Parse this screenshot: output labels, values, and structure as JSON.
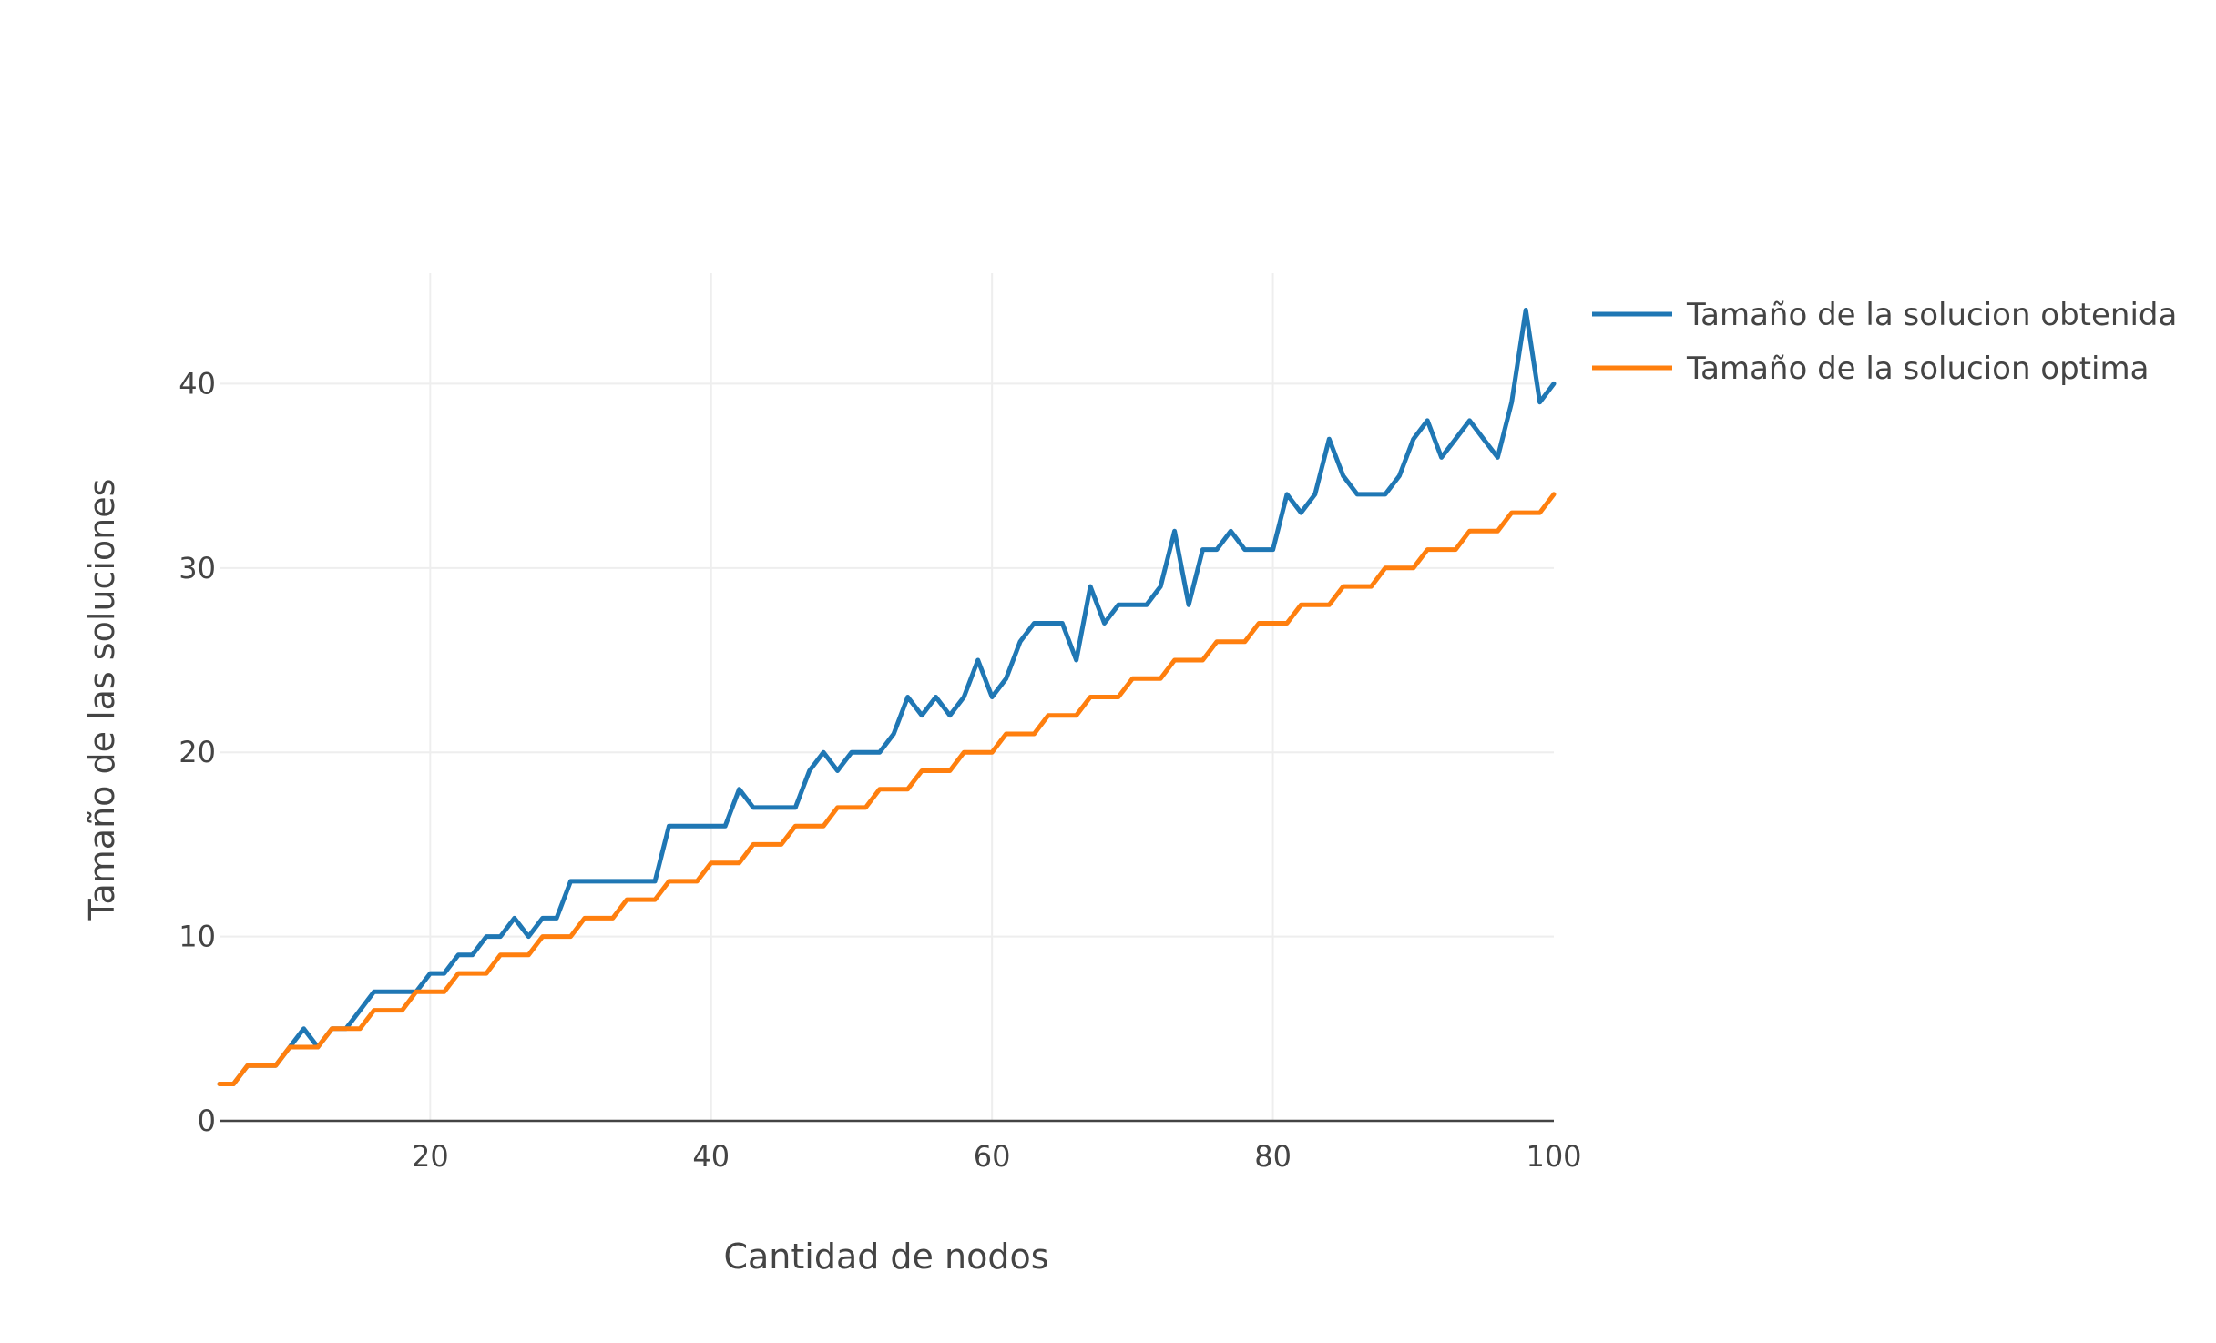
{
  "chart_data": {
    "type": "line",
    "title": "",
    "xlabel": "Cantidad de nodos",
    "ylabel": "Tamaño de las soluciones",
    "xlim": [
      5,
      100
    ],
    "ylim": [
      0,
      46
    ],
    "x_ticks": [
      20,
      40,
      60,
      80,
      100
    ],
    "y_ticks": [
      0,
      10,
      20,
      30,
      40
    ],
    "grid": true,
    "legend_position": "top-right, outside plot",
    "x": [
      5,
      6,
      7,
      8,
      9,
      10,
      11,
      12,
      13,
      14,
      15,
      16,
      17,
      18,
      19,
      20,
      21,
      22,
      23,
      24,
      25,
      26,
      27,
      28,
      29,
      30,
      31,
      32,
      33,
      34,
      35,
      36,
      37,
      38,
      39,
      40,
      41,
      42,
      43,
      44,
      45,
      46,
      47,
      48,
      49,
      50,
      51,
      52,
      53,
      54,
      55,
      56,
      57,
      58,
      59,
      60,
      61,
      62,
      63,
      64,
      65,
      66,
      67,
      68,
      69,
      70,
      71,
      72,
      73,
      74,
      75,
      76,
      77,
      78,
      79,
      80,
      81,
      82,
      83,
      84,
      85,
      86,
      87,
      88,
      89,
      90,
      91,
      92,
      93,
      94,
      95,
      96,
      97,
      98,
      99,
      100
    ],
    "series": [
      {
        "name": "Tamaño de la solucion obtenida",
        "color": "#1f77b4",
        "values": [
          2,
          2,
          3,
          3,
          3,
          4,
          5,
          4,
          5,
          5,
          6,
          7,
          7,
          7,
          7,
          8,
          8,
          9,
          9,
          10,
          10,
          11,
          10,
          11,
          11,
          13,
          13,
          13,
          13,
          13,
          13,
          13,
          16,
          16,
          16,
          16,
          16,
          18,
          17,
          17,
          17,
          17,
          19,
          20,
          19,
          20,
          20,
          20,
          21,
          23,
          22,
          23,
          22,
          23,
          25,
          23,
          24,
          26,
          27,
          27,
          27,
          25,
          29,
          27,
          28,
          28,
          28,
          29,
          32,
          28,
          31,
          31,
          32,
          31,
          31,
          31,
          34,
          33,
          34,
          37,
          35,
          34,
          34,
          34,
          35,
          37,
          38,
          36,
          37,
          38,
          37,
          36,
          39,
          44,
          39,
          40
        ]
      },
      {
        "name": "Tamaño de la solucion optima",
        "color": "#ff7f0e",
        "values": [
          2,
          2,
          3,
          3,
          3,
          4,
          4,
          4,
          5,
          5,
          5,
          6,
          6,
          6,
          7,
          7,
          7,
          8,
          8,
          8,
          9,
          9,
          9,
          10,
          10,
          10,
          11,
          11,
          11,
          12,
          12,
          12,
          13,
          13,
          13,
          14,
          14,
          14,
          15,
          15,
          15,
          16,
          16,
          16,
          17,
          17,
          17,
          18,
          18,
          18,
          19,
          19,
          19,
          20,
          20,
          20,
          21,
          21,
          21,
          22,
          22,
          22,
          23,
          23,
          23,
          24,
          24,
          24,
          25,
          25,
          25,
          26,
          26,
          26,
          27,
          27,
          27,
          28,
          28,
          28,
          29,
          29,
          29,
          30,
          30,
          30,
          31,
          31,
          31,
          32,
          32,
          32,
          33,
          33,
          33,
          34
        ]
      }
    ]
  }
}
